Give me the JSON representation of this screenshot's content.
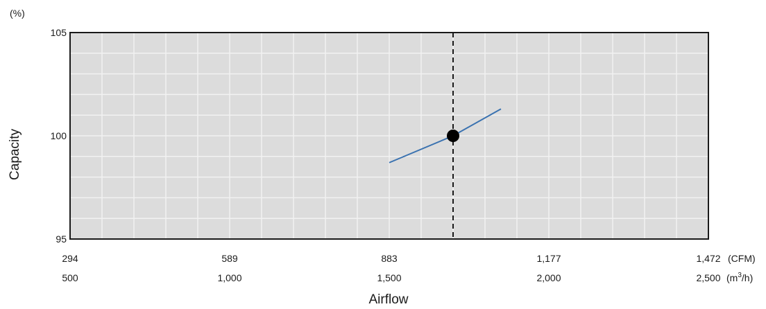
{
  "chart_data": {
    "type": "line",
    "xlabel": "Airflow",
    "ylabel": "Capacity",
    "y_unit": "(%)",
    "xlim": [
      500,
      2500
    ],
    "ylim": [
      95,
      105
    ],
    "y_ticks": [
      {
        "value": 95,
        "label": "95"
      },
      {
        "value": 100,
        "label": "100"
      },
      {
        "value": 105,
        "label": "105"
      }
    ],
    "x_ticks": [
      {
        "value": 500,
        "cfm": "294",
        "m3h": "500"
      },
      {
        "value": 1000,
        "cfm": "589",
        "m3h": "1,000"
      },
      {
        "value": 1500,
        "cfm": "883",
        "m3h": "1,500"
      },
      {
        "value": 2000,
        "cfm": "1,177",
        "m3h": "2,000"
      },
      {
        "value": 2500,
        "cfm": "1,472",
        "m3h": "2,500"
      }
    ],
    "x_unit_cfm": "(CFM)",
    "x_unit_m3h_prefix": "(m",
    "x_unit_m3h_sup": "3",
    "x_unit_m3h_suffix": "/h)",
    "series": [
      {
        "color": "#3a72b0",
        "x": [
          1500,
          1700,
          1850
        ],
        "y": [
          98.7,
          100,
          101.3
        ]
      }
    ],
    "reference_line": {
      "x": 1700,
      "style": "dashed",
      "color": "#1a1a1a"
    },
    "marker": {
      "x": 1700,
      "y": 100,
      "color": "#000000"
    },
    "grid": true,
    "grid_minor_x_step": 100,
    "grid_minor_y_step": 1,
    "plot_background": "#dcdcdc",
    "grid_color": "#f2f2f2"
  }
}
